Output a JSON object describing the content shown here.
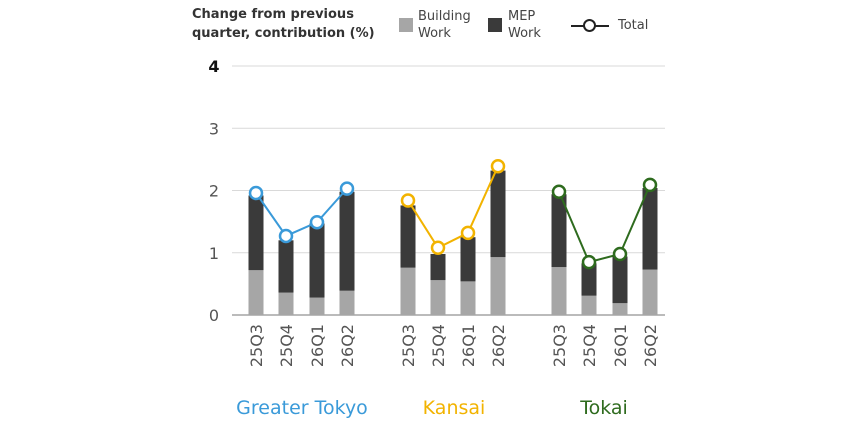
{
  "chart_data": {
    "type": "bar",
    "ylabel": "Change from previous quarter, contribution (%)",
    "ylim": [
      0,
      4
    ],
    "yticks": [
      "0",
      "1",
      "2",
      "3",
      "4"
    ],
    "grid": true,
    "legend": {
      "position": "top",
      "entries": [
        {
          "key": "building",
          "label_line1": "Building",
          "label_line2": "Work"
        },
        {
          "key": "mep",
          "label_line1": "MEP",
          "label_line2": "Work"
        },
        {
          "key": "total",
          "label": "Total"
        }
      ]
    },
    "colors": {
      "building": "#a6a6a6",
      "mep": "#3a3a3a",
      "gridline": "#d9d9d9",
      "axis": "#777777"
    },
    "groups": [
      {
        "name": "Greater Tokyo",
        "color": "#3a9ad9",
        "categories": [
          "25Q3",
          "25Q4",
          "26Q1",
          "26Q2"
        ],
        "series": [
          {
            "name": "Building Work",
            "values": [
              0.72,
              0.36,
              0.28,
              0.39
            ]
          },
          {
            "name": "MEP Work",
            "values": [
              1.2,
              0.84,
              1.19,
              1.59
            ]
          },
          {
            "name": "Total",
            "values": [
              1.96,
              1.27,
              1.49,
              2.03
            ]
          }
        ]
      },
      {
        "name": "Kansai",
        "color": "#f2b300",
        "categories": [
          "25Q3",
          "25Q4",
          "26Q1",
          "26Q2"
        ],
        "series": [
          {
            "name": "Building Work",
            "values": [
              0.76,
              0.56,
              0.54,
              0.93
            ]
          },
          {
            "name": "MEP Work",
            "values": [
              1.0,
              0.42,
              0.71,
              1.39
            ]
          },
          {
            "name": "Total",
            "values": [
              1.84,
              1.08,
              1.32,
              2.39
            ]
          }
        ]
      },
      {
        "name": "Tokai",
        "color": "#2e6b1e",
        "categories": [
          "25Q3",
          "25Q4",
          "26Q1",
          "26Q2"
        ],
        "series": [
          {
            "name": "Building Work",
            "values": [
              0.77,
              0.31,
              0.19,
              0.73
            ]
          },
          {
            "name": "MEP Work",
            "values": [
              1.17,
              0.52,
              0.75,
              1.31
            ]
          },
          {
            "name": "Total",
            "values": [
              1.98,
              0.85,
              0.98,
              2.09
            ]
          }
        ]
      }
    ]
  }
}
